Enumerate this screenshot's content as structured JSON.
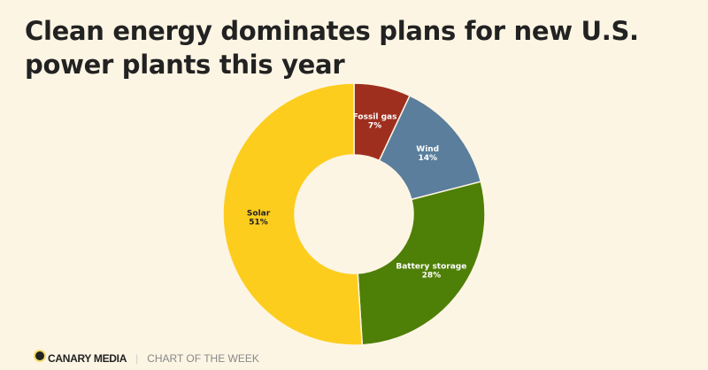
{
  "chart_data": {
    "type": "pie",
    "variant": "donut",
    "title": "Clean energy dominates plans for new U.S. power plants this year",
    "slices": [
      {
        "label": "Fossil gas",
        "value": 7,
        "display": "7%",
        "color": "#9e2f1f",
        "text_color": "#ffffff"
      },
      {
        "label": "Wind",
        "value": 14,
        "display": "14%",
        "color": "#5a7e9c",
        "text_color": "#ffffff"
      },
      {
        "label": "Battery storage",
        "value": 28,
        "display": "28%",
        "color": "#4e7f06",
        "text_color": "#ffffff"
      },
      {
        "label": "Solar",
        "value": 51,
        "display": "51%",
        "color": "#fdcd1e",
        "text_color": "#222222"
      }
    ]
  },
  "footer": {
    "brand": "CANARY MEDIA",
    "separator": "|",
    "subtitle": "CHART OF THE WEEK"
  },
  "colors": {
    "background": "#fdf5e4"
  }
}
